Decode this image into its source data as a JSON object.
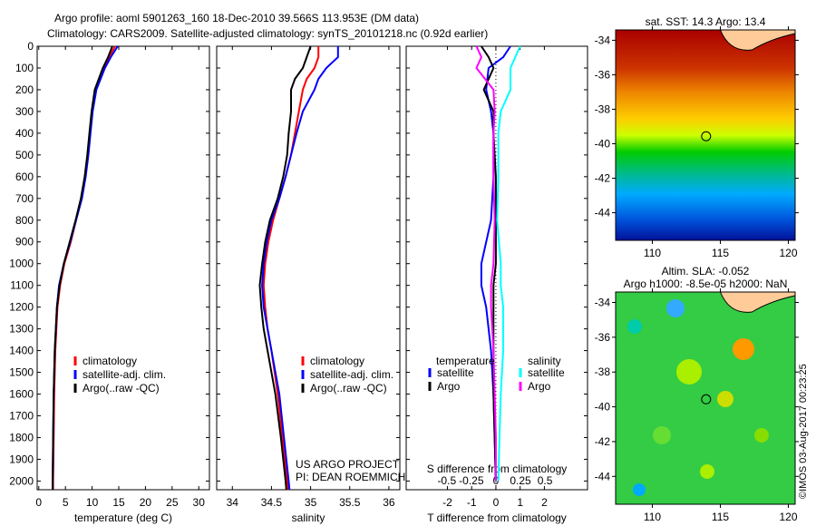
{
  "title_line1": "Argo profile: aoml 5901263_160 18-Dec-2010 39.566S 113.953E (DM data)",
  "title_line2": "Climatology: CARS2009. Satellite-adjusted climatology: synTS_20101218.nc (0.92d earlier)",
  "credit": "©IMOS 03-Aug-2017 00:23:25",
  "colors": {
    "climatology": "#ff0000",
    "satellite": "#0000ff",
    "argo": "#000000",
    "sal_satellite": "#00ffff",
    "sal_argo": "#ff00ff",
    "land": "#ffcc99"
  },
  "chart_data": [
    {
      "type": "line",
      "name": "temperature",
      "xlabel": "temperature (deg C)",
      "xlim": [
        -0.3,
        32
      ],
      "ylim": [
        2040,
        0
      ],
      "xticks": [
        0,
        5,
        10,
        15,
        20,
        25,
        30
      ],
      "yticks": [
        0,
        100,
        200,
        300,
        400,
        500,
        600,
        700,
        800,
        900,
        1000,
        1100,
        1200,
        1300,
        1400,
        1500,
        1600,
        1700,
        1800,
        1900,
        2000
      ],
      "depth": [
        0,
        50,
        100,
        200,
        300,
        400,
        500,
        600,
        700,
        800,
        900,
        1000,
        1100,
        1200,
        1300,
        1400,
        1600,
        1800,
        2000,
        2040
      ],
      "series": [
        {
          "name": "climatology",
          "color": "#ff0000",
          "values": [
            14.3,
            13.2,
            12.1,
            10.6,
            10.0,
            9.6,
            9.2,
            8.7,
            8.0,
            7.0,
            6.0,
            4.8,
            4.0,
            3.5,
            3.3,
            3.1,
            2.9,
            2.8,
            2.7,
            2.7
          ]
        },
        {
          "name": "satellite-adj. clim.",
          "color": "#0000ff",
          "values": [
            14.8,
            13.5,
            12.4,
            10.8,
            10.1,
            9.7,
            9.3,
            8.8,
            8.1,
            7.0,
            5.9,
            4.7,
            3.8,
            3.4,
            3.2,
            3.0,
            2.8,
            2.7,
            2.6,
            2.6
          ]
        },
        {
          "name": "Argo(..raw -QC)",
          "color": "#000000",
          "values": [
            13.8,
            13.0,
            12.0,
            10.5,
            9.9,
            9.5,
            9.1,
            8.6,
            7.9,
            6.9,
            5.8,
            4.7,
            3.9,
            3.4,
            3.2,
            3.0,
            2.8,
            2.7,
            2.6,
            2.6
          ]
        }
      ],
      "legend": [
        "climatology",
        "satellite-adj. clim.",
        "Argo(..raw -QC)"
      ]
    },
    {
      "type": "line",
      "name": "salinity",
      "xlabel": "salinity",
      "xlim": [
        33.8,
        36.14
      ],
      "ylim": [
        2040,
        0
      ],
      "xticks": [
        34,
        34.5,
        35,
        35.5,
        36
      ],
      "depth": [
        0,
        50,
        100,
        150,
        200,
        300,
        400,
        500,
        600,
        700,
        800,
        900,
        1000,
        1100,
        1200,
        1300,
        1400,
        1600,
        1800,
        2000,
        2040
      ],
      "series": [
        {
          "name": "climatology",
          "color": "#ff0000",
          "values": [
            35.1,
            35.1,
            35.05,
            34.95,
            34.9,
            34.85,
            34.8,
            34.75,
            34.68,
            34.6,
            34.52,
            34.46,
            34.42,
            34.4,
            34.42,
            34.45,
            34.5,
            34.58,
            34.64,
            34.7,
            34.71
          ]
        },
        {
          "name": "satellite-adj. clim.",
          "color": "#0000ff",
          "values": [
            35.35,
            35.35,
            35.2,
            35.1,
            35.05,
            34.9,
            34.82,
            34.75,
            34.68,
            34.6,
            34.5,
            34.44,
            34.4,
            34.38,
            34.4,
            34.45,
            34.5,
            34.6,
            34.66,
            34.72,
            34.73
          ]
        },
        {
          "name": "Argo(..raw -QC)",
          "color": "#000000",
          "values": [
            35.0,
            34.95,
            34.9,
            34.8,
            34.75,
            34.75,
            34.72,
            34.7,
            34.65,
            34.58,
            34.48,
            34.42,
            34.38,
            34.35,
            34.37,
            34.4,
            34.45,
            34.55,
            34.62,
            34.68,
            34.69
          ]
        }
      ],
      "legend": [
        "climatology",
        "satellite-adj. clim.",
        "Argo(..raw -QC)"
      ],
      "annotation": [
        "US ARGO PROJECT",
        "PI: DEAN ROEMMICH"
      ]
    },
    {
      "type": "line",
      "name": "difference",
      "xlabel": "T difference from climatology",
      "xlabel_top": "S difference from climatology",
      "xlim": [
        -3.7,
        3.78
      ],
      "ylim": [
        2040,
        0
      ],
      "xticks": [
        -2,
        -1,
        0,
        1,
        2
      ],
      "s_xticks": [
        -0.5,
        -0.25,
        0,
        0.25,
        0.5
      ],
      "depth": [
        0,
        50,
        100,
        200,
        300,
        400,
        600,
        800,
        1000,
        1100,
        1200,
        1400,
        1600,
        1800,
        2000
      ],
      "series": [
        {
          "name": "T satellite",
          "color": "#0000ff",
          "values": [
            0.6,
            0.3,
            -0.3,
            -0.4,
            -0.2,
            -0.1,
            -0.1,
            -0.2,
            -0.6,
            -0.6,
            -0.4,
            -0.2,
            -0.1,
            -0.05,
            0
          ]
        },
        {
          "name": "T Argo",
          "color": "#000000",
          "values": [
            -0.6,
            -0.3,
            -0.1,
            -0.5,
            -0.1,
            -0.1,
            0,
            0,
            0,
            -0.1,
            -0.1,
            -0.1,
            -0.1,
            -0.05,
            0
          ]
        },
        {
          "name": "S satellite",
          "color": "#00ffff",
          "values": [
            1.0,
            0.8,
            0.6,
            0.6,
            0.2,
            0.1,
            0.1,
            0.05,
            0.2,
            0.2,
            0.3,
            0.3,
            0.2,
            0.15,
            0.1
          ]
        },
        {
          "name": "S Argo",
          "color": "#ff00ff",
          "values": [
            -0.8,
            -0.6,
            -0.8,
            -0.1,
            -0.05,
            -0.1,
            -0.1,
            -0.05,
            -0.1,
            -0.2,
            -0.2,
            -0.1,
            -0.05,
            0,
            0
          ]
        }
      ],
      "legend_titles": [
        "temperature",
        "salinity"
      ],
      "legend": [
        "satellite",
        "Argo",
        "satellite",
        "Argo"
      ]
    },
    {
      "type": "heatmap",
      "name": "sst_map",
      "title": "sat. SST: 14.3 Argo: 13.4",
      "xlim": [
        107.3,
        120.5
      ],
      "ylim": [
        -45.6,
        -33.4
      ],
      "xticks": [
        110,
        115,
        120
      ],
      "yticks": [
        -34,
        -36,
        -38,
        -40,
        -42,
        -44
      ],
      "argo_position": [
        113.953,
        -39.566
      ]
    },
    {
      "type": "heatmap",
      "name": "sla_map",
      "title_line1": "Altim. SLA: -0.052",
      "title_line2": "Argo h1000: -8.5e-05 h2000: NaN",
      "xlim": [
        107.3,
        120.5
      ],
      "ylim": [
        -45.6,
        -33.4
      ],
      "xticks": [
        110,
        115,
        120
      ],
      "yticks": [
        -34,
        -36,
        -38,
        -40,
        -42,
        -44
      ],
      "argo_position": [
        113.953,
        -39.566
      ]
    }
  ]
}
